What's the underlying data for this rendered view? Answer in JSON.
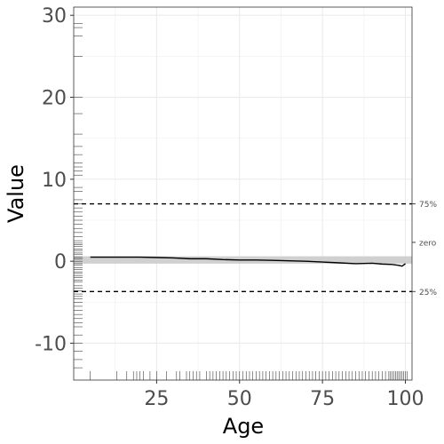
{
  "chart_data": {
    "type": "line",
    "xlabel": "Age",
    "ylabel": "Value",
    "xlim": [
      0,
      102
    ],
    "ylim": [
      -14.5,
      31
    ],
    "x_ticks": [
      25,
      50,
      75,
      100
    ],
    "x_tick_labels": [
      "25",
      "50",
      "75",
      "100"
    ],
    "y_ticks": [
      -10,
      0,
      10,
      20,
      30
    ],
    "y_tick_labels": [
      "-10",
      "0",
      "10",
      "20",
      "30"
    ],
    "grid": true,
    "reference_lines": [
      {
        "label": "75%",
        "y": 7.0,
        "style": "dashed"
      },
      {
        "label": "zero",
        "y": 2.3,
        "style": "tick"
      },
      {
        "label": "25%",
        "y": -3.7,
        "style": "dashed"
      }
    ],
    "band": {
      "y_min": -0.3,
      "y_max": 0.6
    },
    "series": [
      {
        "x": [
          5,
          10,
          15,
          20,
          25,
          30,
          35,
          40,
          45,
          50,
          55,
          60,
          65,
          70,
          75,
          80,
          85,
          90,
          93,
          96,
          98,
          99,
          100
        ],
        "y": [
          0.5,
          0.5,
          0.5,
          0.5,
          0.45,
          0.4,
          0.3,
          0.3,
          0.2,
          0.15,
          0.15,
          0.1,
          0.05,
          0.0,
          -0.1,
          -0.2,
          -0.3,
          -0.25,
          -0.35,
          -0.4,
          -0.5,
          -0.6,
          -0.3
        ]
      }
    ],
    "rug_x": [
      5,
      13,
      16,
      18,
      19,
      20,
      21,
      23,
      25,
      28,
      31,
      32,
      34,
      35,
      36,
      37,
      38,
      40,
      41,
      42,
      43,
      44,
      45,
      46,
      47,
      48,
      49,
      50,
      51,
      52,
      53,
      54,
      55,
      56,
      57,
      58,
      59,
      60,
      61,
      62,
      63,
      64,
      65,
      66,
      67,
      68,
      69,
      70,
      71,
      72,
      73,
      74,
      75,
      76,
      77,
      78,
      79,
      80,
      81,
      82,
      83,
      84,
      85,
      86,
      87,
      88,
      89,
      90,
      91,
      92,
      93,
      94,
      95,
      95.5,
      96,
      96.5,
      97,
      97.5,
      98,
      98.5,
      99,
      99.5,
      100,
      100.5
    ],
    "rug_y": [
      29,
      28.5,
      27.5,
      25,
      20,
      18,
      15.5,
      14,
      13,
      12,
      11.5,
      11,
      10.5,
      9,
      8.5,
      7.5,
      7,
      6.5,
      6,
      5.5,
      5,
      4.5,
      4,
      3.5,
      3,
      2.5,
      2.2,
      2,
      1.8,
      1.5,
      1.3,
      1,
      0.8,
      0.5,
      0.3,
      0,
      -0.3,
      -0.5,
      -0.8,
      -1,
      -1.3,
      -1.5,
      -1.8,
      -2,
      -2.3,
      -2.5,
      -3,
      -3.3,
      -3.6,
      -4,
      -4.3,
      -4.6,
      -5,
      -5.5,
      -6,
      -6.5,
      -7,
      -7.5,
      -8,
      -9,
      -10,
      -11,
      -12,
      -13
    ]
  }
}
